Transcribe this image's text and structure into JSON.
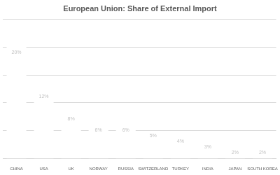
{
  "chart_data": {
    "type": "bar",
    "title": "European Union: Share of External Import",
    "categories": [
      "CHINA",
      "USA",
      "UK",
      "NORWAY",
      "RUSSIA",
      "SWITZERLAND",
      "TURKEY",
      "INDIA",
      "JAPAN",
      "SOUTH KOREA"
    ],
    "values": [
      20,
      12,
      8,
      6,
      6,
      5,
      4,
      3,
      2,
      2
    ],
    "value_labels": [
      "20%",
      "12%",
      "8%",
      "6%",
      "6%",
      "5%",
      "4%",
      "3%",
      "2%",
      "2%"
    ],
    "color": "#ffffff",
    "ylim": [
      0,
      25
    ],
    "yticks": [
      0,
      5,
      10,
      15,
      20,
      25
    ],
    "grid": true,
    "data_labels": true,
    "tick_labels": "x"
  }
}
